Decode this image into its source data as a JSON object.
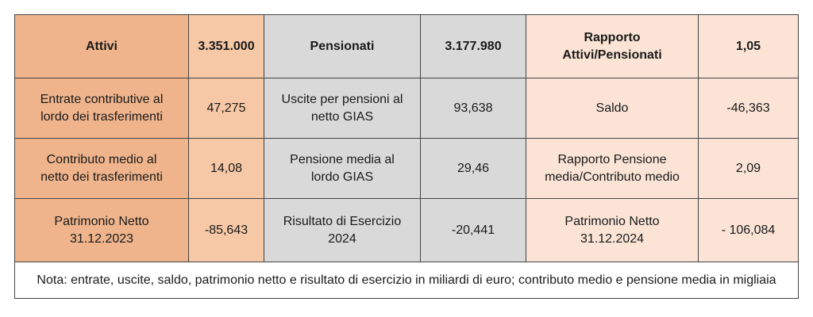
{
  "header": {
    "attivi_label": "Attivi",
    "attivi_value": "3.351.000",
    "pensionati_label": "Pensionati",
    "pensionati_value": "3.177.980",
    "rapporto_label_line1": "Rapporto",
    "rapporto_label_line2": "Attivi/Pensionati",
    "rapporto_value": "1,05"
  },
  "rows": [
    {
      "c1_line1": "Entrate contributive al",
      "c1_line2": "lordo dei trasferimenti",
      "c2": "47,275",
      "c3_line1": "Uscite per pensioni al",
      "c3_line2": "netto GIAS",
      "c4": "93,638",
      "c5_line1": "Saldo",
      "c5_line2": "",
      "c6": "-46,363"
    },
    {
      "c1_line1": "Contributo medio al",
      "c1_line2": "netto dei trasferimenti",
      "c2": "14,08",
      "c3_line1": "Pensione media al",
      "c3_line2": "lordo GIAS",
      "c4": "29,46",
      "c5_line1": "Rapporto Pensione",
      "c5_line2": "media/Contributo medio",
      "c6": "2,09"
    },
    {
      "c1_line1": "Patrimonio Netto",
      "c1_line2": "31.12.2023",
      "c2": "-85,643",
      "c3_line1": "Risultato di Esercizio",
      "c3_line2": "2024",
      "c4": "-20,441",
      "c5_line1": "Patrimonio Netto",
      "c5_line2": "31.12.2024",
      "c6": "- 106,084"
    }
  ],
  "note": "Nota: entrate, uscite, saldo, patrimonio netto e  risultato di esercizio in miliardi di euro; contributo medio e pensione media in migliaia",
  "colors": {
    "orange_label": "#efb48c",
    "orange_value": "#f6c8a6",
    "grey": "#d9d9d9",
    "pink": "#fbe4d6"
  }
}
